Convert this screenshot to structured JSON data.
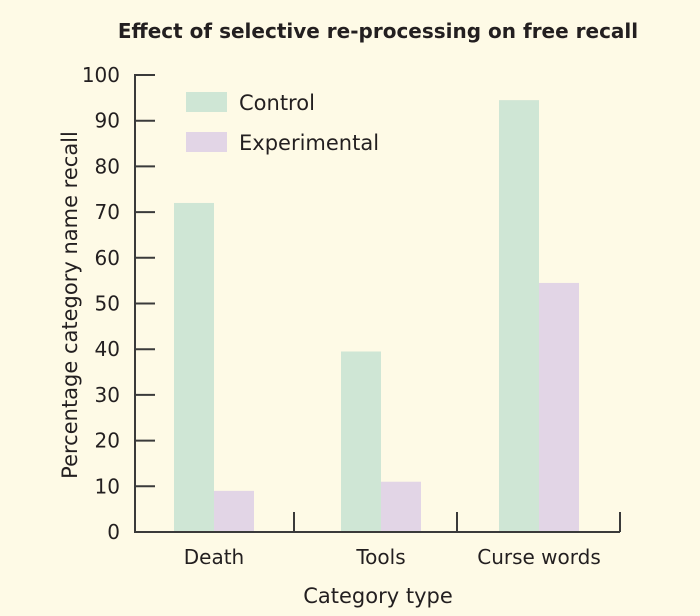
{
  "chart_data": {
    "type": "bar",
    "title": "Effect of selective re-processing on free recall",
    "xlabel": "Category type",
    "ylabel": "Percentage category name recall",
    "categories": [
      "Death",
      "Tools",
      "Curse words"
    ],
    "series": [
      {
        "name": "Control",
        "values": [
          72,
          39.5,
          94.5
        ],
        "color": "#cfe6d5"
      },
      {
        "name": "Experimental",
        "values": [
          9,
          11,
          54.5
        ],
        "color": "#e2d5e6"
      }
    ],
    "ylim": [
      0,
      100
    ],
    "yticks": [
      0,
      10,
      20,
      30,
      40,
      50,
      60,
      70,
      80,
      90,
      100
    ],
    "grid": false,
    "legend": "top-left",
    "background": "#fefae6"
  }
}
